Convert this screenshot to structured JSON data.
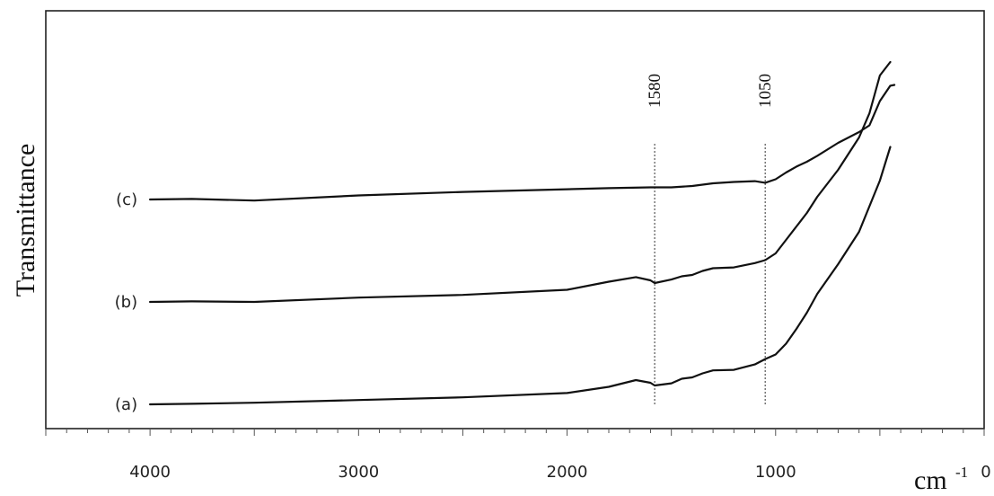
{
  "chart_data": {
    "type": "line",
    "title": "",
    "ylabel": "Transmittance",
    "xlabel": "cm",
    "xlabel_superscript": "-1",
    "xlim": [
      4500,
      0
    ],
    "x_ticks": [
      4000,
      3000,
      2000,
      1000,
      0
    ],
    "x_tick_labels": [
      "4000",
      "3000",
      "2000",
      "1000",
      "0"
    ],
    "grid": false,
    "y_ticks_shown": false,
    "reference_lines": [
      {
        "x": 1580,
        "label": "1580"
      },
      {
        "x": 1050,
        "label": "1050"
      }
    ],
    "series": [
      {
        "name": "(a)",
        "points": [
          [
            4000,
            0.0
          ],
          [
            3800,
            0.2
          ],
          [
            3500,
            0.6
          ],
          [
            3000,
            1.6
          ],
          [
            2500,
            2.6
          ],
          [
            2000,
            4.2
          ],
          [
            1800,
            6.5
          ],
          [
            1670,
            9.0
          ],
          [
            1600,
            8.0
          ],
          [
            1580,
            7.0
          ],
          [
            1500,
            7.8
          ],
          [
            1450,
            9.5
          ],
          [
            1400,
            10.0
          ],
          [
            1350,
            11.5
          ],
          [
            1300,
            12.6
          ],
          [
            1200,
            12.8
          ],
          [
            1100,
            14.8
          ],
          [
            1050,
            16.8
          ],
          [
            1000,
            18.5
          ],
          [
            950,
            22.5
          ],
          [
            900,
            28.0
          ],
          [
            850,
            34.0
          ],
          [
            800,
            41.0
          ],
          [
            700,
            52.0
          ],
          [
            600,
            64.0
          ],
          [
            500,
            83.0
          ],
          [
            450,
            95.5
          ]
        ]
      },
      {
        "name": "(b)",
        "points": [
          [
            4000,
            38.0
          ],
          [
            3800,
            38.2
          ],
          [
            3500,
            38.0
          ],
          [
            3000,
            39.6
          ],
          [
            2500,
            40.6
          ],
          [
            2000,
            42.5
          ],
          [
            1800,
            45.5
          ],
          [
            1670,
            47.2
          ],
          [
            1600,
            46.0
          ],
          [
            1580,
            45.0
          ],
          [
            1500,
            46.3
          ],
          [
            1450,
            47.5
          ],
          [
            1400,
            48.0
          ],
          [
            1350,
            49.5
          ],
          [
            1300,
            50.5
          ],
          [
            1200,
            50.8
          ],
          [
            1100,
            52.4
          ],
          [
            1050,
            53.5
          ],
          [
            1000,
            56.0
          ],
          [
            950,
            61.0
          ],
          [
            900,
            66.0
          ],
          [
            850,
            71.0
          ],
          [
            800,
            77.0
          ],
          [
            700,
            87.0
          ],
          [
            600,
            99.0
          ],
          [
            550,
            108.0
          ],
          [
            500,
            122.0
          ],
          [
            450,
            127.0
          ]
        ]
      },
      {
        "name": "(c)",
        "points": [
          [
            4000,
            76.0
          ],
          [
            3800,
            76.2
          ],
          [
            3500,
            75.6
          ],
          [
            3000,
            77.5
          ],
          [
            2500,
            78.8
          ],
          [
            2000,
            79.8
          ],
          [
            1800,
            80.2
          ],
          [
            1600,
            80.5
          ],
          [
            1500,
            80.5
          ],
          [
            1400,
            81.0
          ],
          [
            1300,
            82.0
          ],
          [
            1200,
            82.5
          ],
          [
            1100,
            82.8
          ],
          [
            1050,
            82.2
          ],
          [
            1000,
            83.5
          ],
          [
            950,
            86.0
          ],
          [
            900,
            88.2
          ],
          [
            850,
            90.0
          ],
          [
            800,
            92.2
          ],
          [
            700,
            97.0
          ],
          [
            600,
            101.0
          ],
          [
            550,
            103.5
          ],
          [
            500,
            112.5
          ],
          [
            450,
            118.2
          ],
          [
            430,
            118.5
          ]
        ]
      }
    ]
  }
}
